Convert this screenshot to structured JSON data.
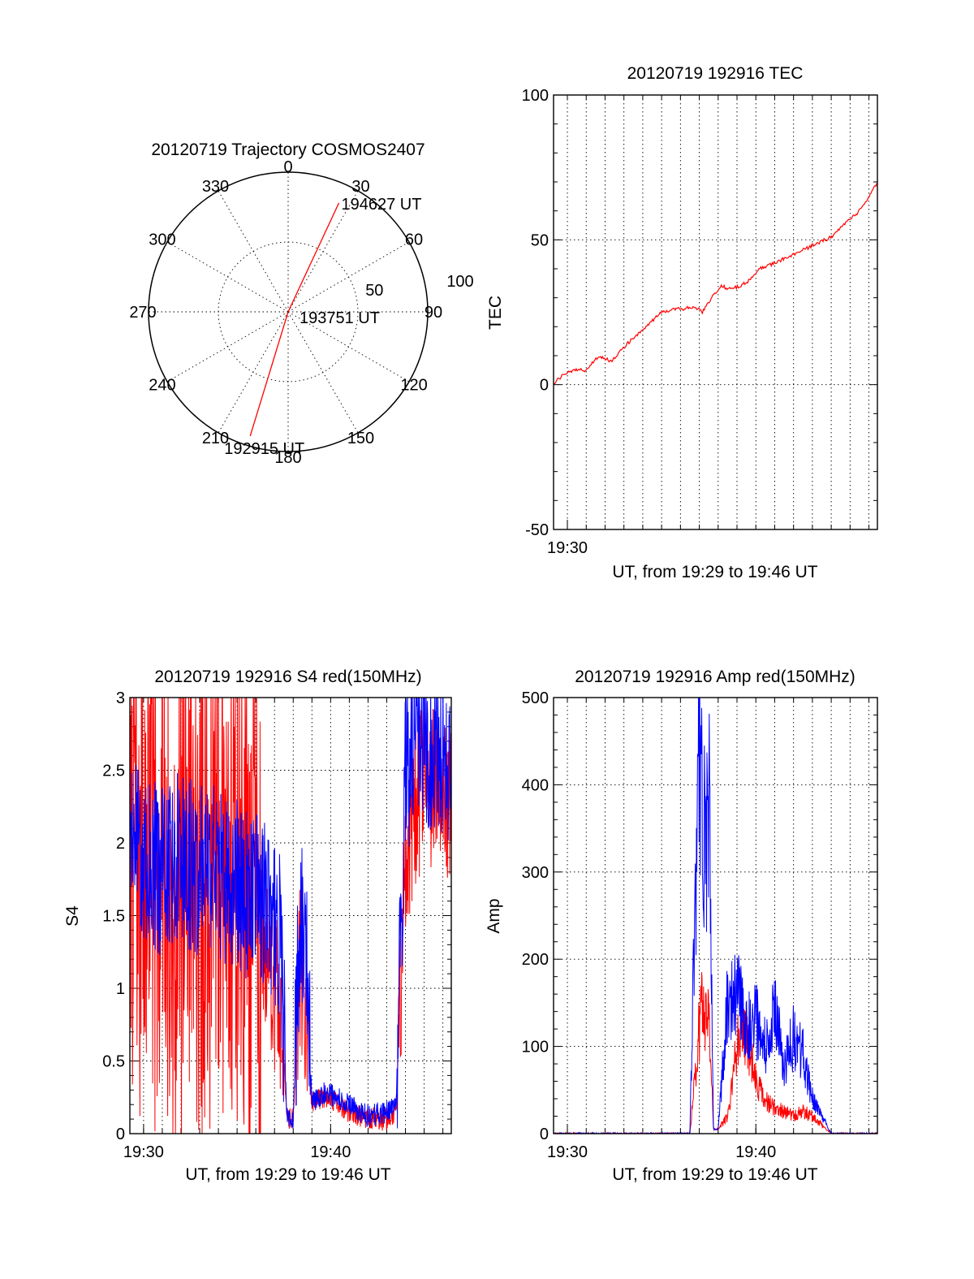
{
  "chart_data": [
    {
      "id": "polar",
      "type": "polar-trajectory",
      "title": "20120719 Trajectory COSMOS2407",
      "azimuth_labels": [
        "0",
        "30",
        "60",
        "90",
        "120",
        "150",
        "180",
        "210",
        "240",
        "270",
        "300",
        "330"
      ],
      "radial_labels": [
        "50",
        "100"
      ],
      "rlim": [
        0,
        100
      ],
      "grid": true,
      "series": [
        {
          "color": "#ff0000",
          "points": [
            {
              "az": 25,
              "r": 86
            },
            {
              "az": 0,
              "r": 0
            },
            {
              "az": 197,
              "r": 93
            }
          ]
        }
      ],
      "annotations": [
        {
          "text": "194627 UT",
          "az": 25,
          "r": 86
        },
        {
          "text": "193751 UT",
          "az": 0,
          "r": 0
        },
        {
          "text": "192915 UT",
          "az": 197,
          "r": 93
        }
      ]
    },
    {
      "id": "tec",
      "type": "line",
      "title": "20120719 192916 TEC",
      "xlabel": "UT, from 19:29 to 19:46 UT",
      "ylabel": "TEC",
      "xlim": [
        "19:29:16",
        "19:46:27"
      ],
      "ylim": [
        -50,
        100
      ],
      "yticks": [
        -50,
        0,
        50,
        100
      ],
      "xticks": [
        "19:30"
      ],
      "grid": true,
      "series": [
        {
          "color": "#ff0000",
          "x": [
            "19:29:16",
            "19:29:50",
            "19:30:30",
            "19:31:00",
            "19:31:40",
            "19:32:20",
            "19:33:00",
            "19:33:30",
            "19:34:00",
            "19:34:30",
            "19:35:00",
            "19:35:40",
            "19:36:10",
            "19:36:40",
            "19:37:10",
            "19:37:40",
            "19:38:10",
            "19:38:40",
            "19:39:10",
            "19:39:40",
            "19:40:10",
            "19:41:00",
            "19:42:00",
            "19:43:00",
            "19:44:00",
            "19:44:30",
            "19:45:00",
            "19:45:30",
            "19:46:00",
            "19:46:27"
          ],
          "y": [
            0,
            4,
            5,
            5,
            10,
            8,
            13,
            16,
            19,
            22,
            25,
            26,
            26,
            27,
            25,
            30,
            34,
            33,
            34,
            36,
            40,
            42,
            45,
            48,
            51,
            54,
            57,
            60,
            65,
            70
          ]
        }
      ]
    },
    {
      "id": "s4",
      "type": "line",
      "title": "20120719 192916 S4 red(150MHz)",
      "xlabel": "UT, from 19:29 to 19:46 UT",
      "ylabel": "S4",
      "xlim": [
        "19:29:16",
        "19:46:27"
      ],
      "ylim": [
        0,
        3
      ],
      "yticks": [
        0,
        0.5,
        1,
        1.5,
        2,
        2.5,
        3
      ],
      "xticks": [
        "19:30",
        "19:40"
      ],
      "grid": true,
      "series": [
        {
          "color": "#ff0000",
          "x": [
            "19:29:16",
            "19:30:00",
            "19:31:00",
            "19:32:00",
            "19:33:00",
            "19:34:00",
            "19:35:00",
            "19:36:00",
            "19:36:40",
            "19:37:00",
            "19:37:20",
            "19:37:40",
            "19:38:00",
            "19:38:20",
            "19:38:40",
            "19:39:00",
            "19:39:40",
            "19:40:20",
            "19:41:00",
            "19:42:00",
            "19:43:00",
            "19:43:30",
            "19:44:00",
            "19:45:00",
            "19:46:27"
          ],
          "y": [
            1.8,
            1.9,
            1.7,
            1.8,
            1.8,
            1.7,
            1.6,
            1.5,
            1.2,
            1.0,
            0.9,
            0.1,
            0.1,
            1.2,
            0.9,
            0.2,
            0.25,
            0.22,
            0.15,
            0.1,
            0.1,
            0.15,
            2.0,
            2.4,
            2.3
          ]
        },
        {
          "color": "#0000ff",
          "x": [
            "19:29:16",
            "19:30:00",
            "19:31:00",
            "19:32:00",
            "19:33:00",
            "19:34:00",
            "19:35:00",
            "19:36:00",
            "19:36:40",
            "19:37:00",
            "19:37:20",
            "19:37:40",
            "19:38:00",
            "19:38:20",
            "19:38:40",
            "19:39:00",
            "19:39:40",
            "19:40:20",
            "19:41:00",
            "19:42:00",
            "19:43:00",
            "19:43:30",
            "19:44:00",
            "19:45:00",
            "19:46:27"
          ],
          "y": [
            2.0,
            1.9,
            1.8,
            1.9,
            1.8,
            1.8,
            1.7,
            1.6,
            1.6,
            1.5,
            1.3,
            0.1,
            0.1,
            1.4,
            1.4,
            0.2,
            0.28,
            0.25,
            0.2,
            0.12,
            0.15,
            0.2,
            2.5,
            2.7,
            2.5
          ]
        }
      ]
    },
    {
      "id": "amp",
      "type": "line",
      "title": "20120719 192916 Amp red(150MHz)",
      "xlabel": "UT, from 19:29 to 19:46 UT",
      "ylabel": "Amp",
      "xlim": [
        "19:29:16",
        "19:46:27"
      ],
      "ylim": [
        0,
        500
      ],
      "yticks": [
        0,
        100,
        200,
        300,
        400,
        500
      ],
      "xticks": [
        "19:30",
        "19:40"
      ],
      "grid": true,
      "series": [
        {
          "color": "#ff0000",
          "x": [
            "19:29:16",
            "19:36:30",
            "19:37:00",
            "19:37:10",
            "19:37:30",
            "19:37:45",
            "19:38:00",
            "19:38:30",
            "19:39:00",
            "19:39:30",
            "19:40:00",
            "19:40:30",
            "19:41:00",
            "19:41:30",
            "19:42:00",
            "19:42:30",
            "19:43:00",
            "19:43:30",
            "19:44:00",
            "19:46:27"
          ],
          "y": [
            0,
            0,
            120,
            150,
            140,
            5,
            5,
            20,
            100,
            110,
            60,
            40,
            30,
            25,
            20,
            25,
            20,
            10,
            0,
            0
          ]
        },
        {
          "color": "#0000ff",
          "x": [
            "19:29:16",
            "19:36:30",
            "19:37:00",
            "19:37:10",
            "19:37:20",
            "19:37:30",
            "19:37:45",
            "19:38:00",
            "19:38:30",
            "19:39:00",
            "19:39:30",
            "19:40:00",
            "19:40:30",
            "19:41:00",
            "19:41:30",
            "19:42:00",
            "19:42:30",
            "19:43:00",
            "19:43:30",
            "19:44:00",
            "19:46:27"
          ],
          "y": [
            0,
            0,
            480,
            380,
            300,
            400,
            5,
            5,
            150,
            160,
            120,
            130,
            100,
            140,
            80,
            110,
            90,
            40,
            20,
            0,
            0
          ]
        }
      ]
    }
  ]
}
